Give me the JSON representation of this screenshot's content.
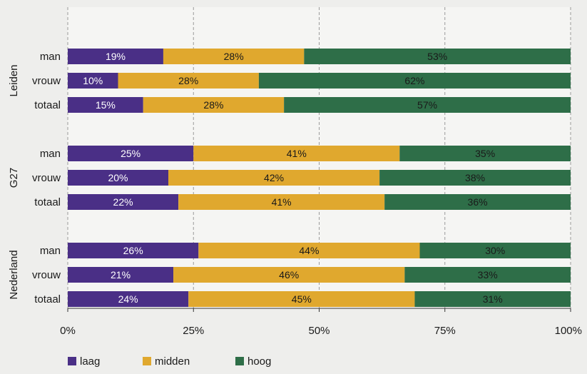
{
  "chart_data": {
    "type": "bar",
    "orientation": "horizontal",
    "stacked": true,
    "value_unit": "%",
    "xlim": [
      0,
      100
    ],
    "x_ticks": [
      "0%",
      "25%",
      "50%",
      "75%",
      "100%"
    ],
    "grid": "vertical-dashed",
    "legend_position": "bottom-left",
    "groups": [
      {
        "label": "Leiden",
        "rows": [
          {
            "label": "man",
            "values": [
              19,
              28,
              53
            ]
          },
          {
            "label": "vrouw",
            "values": [
              10,
              28,
              62
            ]
          },
          {
            "label": "totaal",
            "values": [
              15,
              28,
              57
            ]
          }
        ]
      },
      {
        "label": "G27",
        "rows": [
          {
            "label": "man",
            "values": [
              25,
              41,
              35
            ]
          },
          {
            "label": "vrouw",
            "values": [
              20,
              42,
              38
            ]
          },
          {
            "label": "totaal",
            "values": [
              22,
              41,
              36
            ]
          }
        ]
      },
      {
        "label": "Nederland",
        "rows": [
          {
            "label": "man",
            "values": [
              26,
              44,
              30
            ]
          },
          {
            "label": "vrouw",
            "values": [
              21,
              46,
              33
            ]
          },
          {
            "label": "totaal",
            "values": [
              24,
              45,
              31
            ]
          }
        ]
      }
    ],
    "series": [
      {
        "name": "laag",
        "color": "#4a2f86",
        "label_color": "#ffffff"
      },
      {
        "name": "midden",
        "color": "#e0a82e",
        "label_color": "#1a1a1a"
      },
      {
        "name": "hoog",
        "color": "#2e6e48",
        "label_color": "#1a1a1a"
      }
    ]
  }
}
